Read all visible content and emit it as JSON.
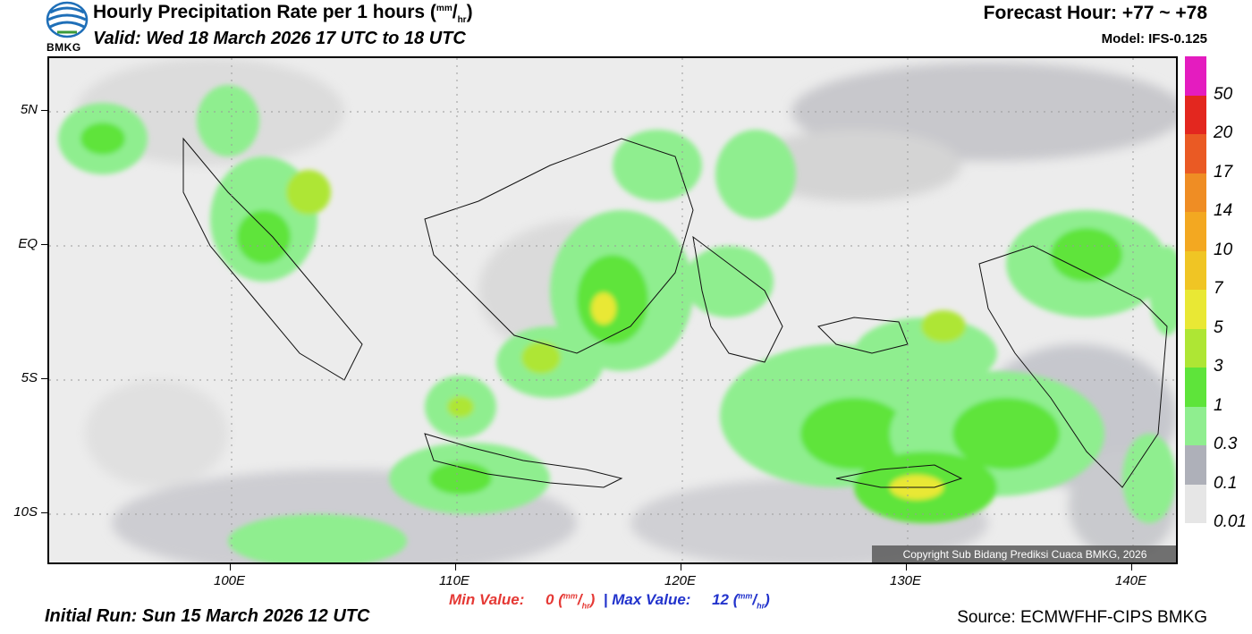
{
  "header": {
    "title_text": "Hourly Precipitation Rate per 1 hours",
    "title_unit_num": "mm",
    "title_unit_den": "hr",
    "valid": "Valid: Wed 18 March 2026 17 UTC to 18 UTC",
    "forecast_hour": "Forecast Hour: +77 ~ +78",
    "model": "Model: IFS-0.125",
    "logo_text": "BMKG"
  },
  "map": {
    "lat_labels": [
      "5N",
      "EQ",
      "5S",
      "10S"
    ],
    "lon_labels": [
      "100E",
      "110E",
      "120E",
      "130E",
      "140E"
    ],
    "copyright": "Copyright Sub Bidang Prediksi Cuaca BMKG, 2026"
  },
  "legend": {
    "labels": [
      "50",
      "20",
      "17",
      "14",
      "10",
      "7",
      "5",
      "3",
      "1",
      "0.3",
      "0.1",
      "0.01"
    ],
    "colors": [
      "#e41cbf",
      "#e3271f",
      "#ea5a24",
      "#ef8d24",
      "#f3a821",
      "#f0c524",
      "#e9e834",
      "#aee634",
      "#5ee43a",
      "#8fee8f",
      "#aeb0b9",
      "#e6e6e6"
    ]
  },
  "footer": {
    "min_label": "Min Value:",
    "min_value": "0",
    "separator": "|",
    "max_label": "Max Value:",
    "max_value": "12",
    "unit_num": "mm",
    "unit_den": "hr",
    "initial_run": "Initial Run: Sun 15 March 2026 12 UTC",
    "source": "Source: ECMWFHF-CIPS BMKG"
  }
}
